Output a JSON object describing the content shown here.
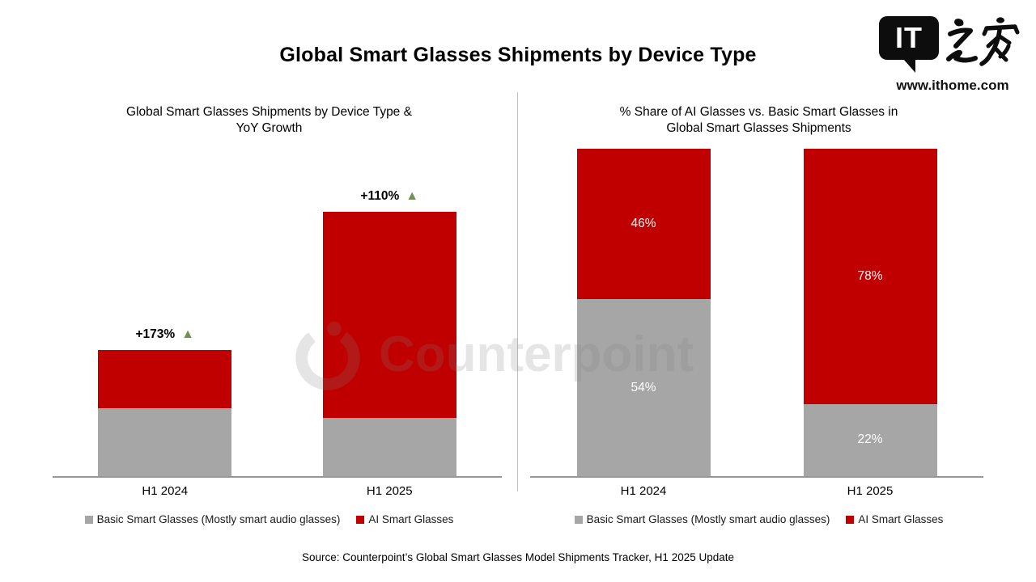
{
  "header": {
    "title": "Global Smart Glasses Shipments by Device Type"
  },
  "logo": {
    "bubble_text": "IT",
    "brand_name_zh": "之家",
    "site_url": "www.ithome.com"
  },
  "watermark": {
    "text": "Counterpoint"
  },
  "colors": {
    "ai_red": "#c00000",
    "basic_gray": "#a6a6a6",
    "growth_green": "#6f9156",
    "label_white": "#ffffff"
  },
  "source": "Source: Counterpoint’s Global Smart Glasses Model Shipments Tracker, H1 2025 Update",
  "chart_data": [
    {
      "type": "bar",
      "stacked": true,
      "title": "Global Smart Glasses Shipments by Device Type & YoY Growth",
      "title_lines": [
        "Global Smart Glasses Shipments by Device Type &",
        "YoY Growth"
      ],
      "categories": [
        "H1 2024",
        "H1 2025"
      ],
      "series": [
        {
          "name": "Basic Smart Glasses (Mostly smart audio glasses)",
          "color_key": "basic_gray",
          "values": [
            54,
            46
          ]
        },
        {
          "name": "AI Smart Glasses",
          "color_key": "ai_red",
          "values": [
            46,
            164
          ]
        }
      ],
      "value_note": "indexed shipment volumes; H1 2024 total = 100, H1 2025 total ≈ 210",
      "annotations": [
        {
          "category": "H1 2024",
          "text": "+173%",
          "marker": "▲"
        },
        {
          "category": "H1 2025",
          "text": "+110%",
          "marker": "▲"
        }
      ],
      "xlabel": "",
      "ylabel": "",
      "ylim": [
        0,
        260
      ],
      "grid": false,
      "legend_position": "bottom"
    },
    {
      "type": "bar",
      "stacked": true,
      "percent": true,
      "title": "% Share of AI Glasses vs. Basic Smart Glasses in Global Smart Glasses Shipments",
      "title_lines": [
        "% Share of AI Glasses vs. Basic Smart Glasses in",
        "Global Smart Glasses Shipments"
      ],
      "categories": [
        "H1 2024",
        "H1 2025"
      ],
      "series": [
        {
          "name": "Basic Smart Glasses (Mostly smart audio glasses)",
          "color_key": "basic_gray",
          "values": [
            54,
            22
          ],
          "labels": [
            "54%",
            "22%"
          ]
        },
        {
          "name": "AI Smart Glasses",
          "color_key": "ai_red",
          "values": [
            46,
            78
          ],
          "labels": [
            "46%",
            "78%"
          ]
        }
      ],
      "xlabel": "",
      "ylabel": "",
      "ylim": [
        0,
        100
      ],
      "grid": false,
      "legend_position": "bottom"
    }
  ]
}
